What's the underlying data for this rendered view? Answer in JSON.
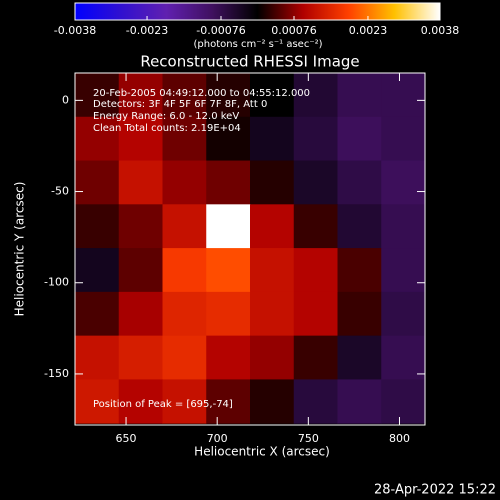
{
  "chart_data": {
    "type": "heatmap",
    "title": "Reconstructed RHESSI Image",
    "xlabel": "Heliocentric X (arcsec)",
    "ylabel": "Heliocentric Y (arcsec)",
    "colorbar_label": "(photons cm⁻² s⁻¹ asec⁻²)",
    "annotations": [
      "20-Feb-2005 04:49:12.000 to 04:55:12.000",
      "Detectors: 3F 4F 5F 6F 7F 8F, Att 0",
      "Energy Range: 6.0 - 12.0 keV",
      "Clean     Total counts: 2.19E+04",
      "Position of Peak = [695,-74]"
    ],
    "timestamp": "28-Apr-2022 15:22",
    "x": [
      634,
      658,
      682,
      706,
      730,
      754,
      778,
      802
    ],
    "y": [
      3,
      -21,
      -45,
      -69,
      -93,
      -117,
      -141,
      -165
    ],
    "z": [
      [
        0.0003,
        0.0008,
        0.0005,
        0.0002,
        0.0,
        -0.0005,
        -0.0008,
        -0.0008
      ],
      [
        0.0008,
        0.001,
        0.0006,
        0.0001,
        -0.0003,
        -0.0006,
        -0.0009,
        -0.0008
      ],
      [
        0.0006,
        0.0012,
        0.0008,
        0.0006,
        0.0002,
        -0.0004,
        -0.0007,
        -0.0009
      ],
      [
        0.0003,
        0.0006,
        0.0012,
        0.0038,
        0.001,
        0.0003,
        -0.0005,
        -0.0008
      ],
      [
        -0.0003,
        0.0005,
        0.0018,
        0.002,
        0.0012,
        0.001,
        0.0004,
        -0.0008
      ],
      [
        0.0004,
        0.0009,
        0.0015,
        0.0016,
        0.0012,
        0.001,
        0.0003,
        -0.0007
      ],
      [
        0.0012,
        0.0014,
        0.0016,
        0.001,
        0.0008,
        0.0003,
        -0.0004,
        -0.0008
      ],
      [
        0.0013,
        0.001,
        0.0012,
        0.0005,
        0.0002,
        -0.0006,
        -0.0008,
        -0.0007
      ]
    ],
    "xlim": [
      622,
      814
    ],
    "ylim": [
      -178,
      15
    ],
    "xticks": [
      650,
      700,
      750,
      800
    ],
    "yticks": [
      0,
      -50,
      -100,
      -150
    ],
    "clim": [
      -0.0038,
      0.0038
    ],
    "cticks": [
      -0.0038,
      -0.0023,
      -0.00076,
      0.00076,
      0.0023,
      0.0038
    ],
    "colorscale": [
      "#0000ff",
      "#3010d0",
      "#6020b0",
      "#401060",
      "#000000",
      "#b00000",
      "#ff4000",
      "#ffc000",
      "#ffffff"
    ]
  }
}
